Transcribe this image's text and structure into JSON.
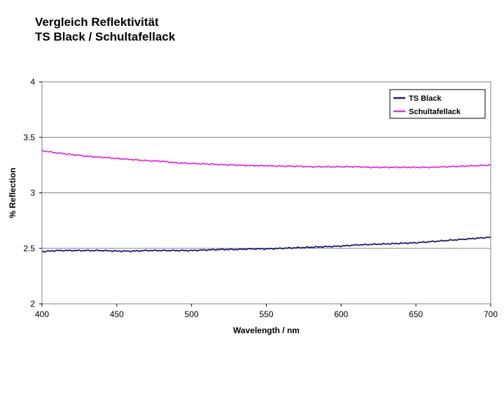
{
  "title_lines": [
    "Vergleich Reflektivität",
    "TS Black / Schultafellack"
  ],
  "chart_data": {
    "type": "line",
    "title": "Vergleich Reflektivität TS Black / Schultafellack",
    "xlabel": "Wavelength / nm",
    "ylabel": "% Reflection",
    "xlim": [
      400,
      700
    ],
    "ylim": [
      2,
      4
    ],
    "x_ticks": [
      400,
      450,
      500,
      550,
      600,
      650,
      700
    ],
    "y_ticks": [
      2,
      2.5,
      3,
      3.5,
      4
    ],
    "y_tick_labels": [
      "2",
      "2.5",
      "3",
      "3.5",
      "4"
    ],
    "grid": {
      "horizontal": true,
      "vertical": false
    },
    "legend_position": "top-right",
    "series": [
      {
        "name": "TS Black",
        "color": "#1a1a6e",
        "x": [
          400,
          410,
          420,
          430,
          440,
          450,
          460,
          470,
          480,
          490,
          500,
          510,
          520,
          530,
          540,
          550,
          560,
          570,
          580,
          590,
          600,
          610,
          620,
          630,
          640,
          650,
          660,
          670,
          680,
          690,
          700
        ],
        "y": [
          2.47,
          2.48,
          2.48,
          2.48,
          2.48,
          2.475,
          2.475,
          2.48,
          2.48,
          2.48,
          2.48,
          2.485,
          2.49,
          2.49,
          2.495,
          2.495,
          2.5,
          2.505,
          2.51,
          2.515,
          2.52,
          2.53,
          2.535,
          2.54,
          2.545,
          2.55,
          2.56,
          2.57,
          2.58,
          2.59,
          2.6
        ]
      },
      {
        "name": "Schultafellack",
        "color": "#e030e0",
        "x": [
          400,
          410,
          420,
          430,
          440,
          450,
          460,
          470,
          480,
          490,
          500,
          510,
          520,
          530,
          540,
          550,
          560,
          570,
          580,
          590,
          600,
          610,
          620,
          630,
          640,
          650,
          660,
          670,
          680,
          690,
          700
        ],
        "y": [
          3.38,
          3.36,
          3.345,
          3.33,
          3.32,
          3.31,
          3.3,
          3.29,
          3.285,
          3.27,
          3.265,
          3.26,
          3.255,
          3.25,
          3.245,
          3.245,
          3.24,
          3.24,
          3.235,
          3.235,
          3.235,
          3.235,
          3.23,
          3.23,
          3.23,
          3.23,
          3.23,
          3.235,
          3.24,
          3.245,
          3.25
        ]
      }
    ]
  }
}
